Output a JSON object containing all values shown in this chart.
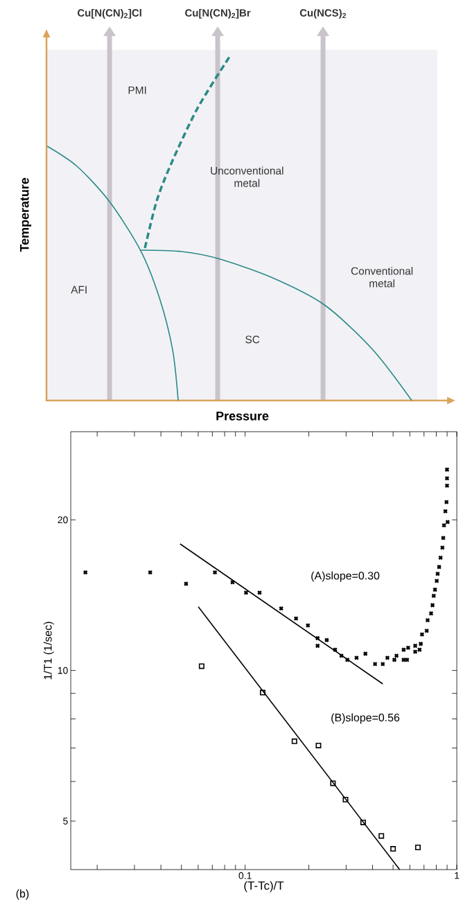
{
  "chart_data": [
    {
      "type": "other",
      "xlabel": "Pressure",
      "ylabel": "Temperature",
      "annotations": [
        "Cu[N(CN)$_{2}$]Cl",
        "Cu[N(CN)$_{2}$]Br",
        "Cu(NCS)$_{2}$",
        "PMI",
        "Unconventional metal",
        "AFI",
        "SC",
        "Conventional metal"
      ]
    },
    {
      "type": "scatter",
      "xlabel": "(T-Tc)/T",
      "ylabel": "1/T1 (1/sec)",
      "log": "xy",
      "xlim": [
        0.015,
        1
      ],
      "ylim": [
        4,
        30
      ],
      "xticks": [
        {
          "value": 0.02,
          "label": null
        },
        {
          "value": 0.03,
          "label": null
        },
        {
          "value": 0.04,
          "label": null
        },
        {
          "value": 0.05,
          "label": null
        },
        {
          "value": 0.06,
          "label": null
        },
        {
          "value": 0.07,
          "label": null
        },
        {
          "value": 0.08,
          "label": null
        },
        {
          "value": 0.09,
          "label": null
        },
        0.1,
        {
          "value": 0.2,
          "label": null
        },
        {
          "value": 0.3,
          "label": null
        },
        {
          "value": 0.4,
          "label": null
        },
        {
          "value": 0.5,
          "label": null
        },
        {
          "value": 0.6,
          "label": null
        },
        {
          "value": 0.7,
          "label": null
        },
        {
          "value": 0.8,
          "label": null
        },
        {
          "value": 0.9,
          "label": null
        },
        1
      ],
      "yticks": [
        5,
        {
          "value": 6,
          "label": null
        },
        {
          "value": 7,
          "label": null
        },
        {
          "value": 8,
          "label": null
        },
        {
          "value": 9,
          "label": null
        },
        10,
        20
      ],
      "annotations": [
        "(A)slope=0.30",
        "(B)slope=0.56",
        "(b)"
      ],
      "series": [
        {
          "type": "scatter",
          "marker": "cross",
          "color": "#000000",
          "x": [
            0.0176,
            0.0356,
            0.0526,
            0.072,
            0.0872,
            0.101,
            0.117,
            0.148,
            0.174,
            0.198,
            0.22,
            0.22,
            0.243,
            0.266,
            0.285,
            0.304,
            0.336,
            0.37,
            0.411,
            0.447,
            0.47,
            0.507,
            0.519,
            0.561,
            0.561,
            0.582,
            0.589,
            0.636,
            0.636,
            0.667,
            0.676,
            0.685,
            0.721,
            0.728,
            0.756,
            0.768,
            0.778,
            0.789,
            0.804,
            0.812,
            0.825,
            0.838,
            0.855,
            0.863,
            0.87,
            0.905,
            0.883,
            0.894,
            0.899,
            0.899,
            0.899
          ],
          "values": [
            15.7,
            15.7,
            14.9,
            15.7,
            15.0,
            14.3,
            14.3,
            13.3,
            12.7,
            12.3,
            11.6,
            11.2,
            11.5,
            11.0,
            10.7,
            10.5,
            10.6,
            10.8,
            10.3,
            10.3,
            10.6,
            10.5,
            10.7,
            11.0,
            10.5,
            10.5,
            11.1,
            11.2,
            10.9,
            11.0,
            11.3,
            11.8,
            12.0,
            12.6,
            13.0,
            13.5,
            14.1,
            14.5,
            15.1,
            15.6,
            16.1,
            16.8,
            17.6,
            18.4,
            19.5,
            19.8,
            20.8,
            21.7,
            23.4,
            24.2,
            25.2
          ]
        },
        {
          "type": "scatter",
          "marker": "square",
          "color": "#000000",
          "x": [
            0.0623,
            0.121,
            0.171,
            0.222,
            0.26,
            0.298,
            0.361,
            0.44,
            0.5,
            0.655
          ],
          "values": [
            10.2,
            9.03,
            7.22,
            7.08,
            5.95,
            5.52,
            4.97,
            4.67,
            4.4,
            4.43
          ]
        },
        {
          "type": "line",
          "line_style": "solid",
          "color": "#000000",
          "x": [
            0.0493,
            0.447
          ],
          "values": [
            17.9,
            9.4
          ]
        },
        {
          "type": "line",
          "line_style": "solid",
          "color": "#000000",
          "x": [
            0.0601,
            0.537
          ],
          "values": [
            13.4,
            4.0
          ]
        }
      ]
    }
  ]
}
